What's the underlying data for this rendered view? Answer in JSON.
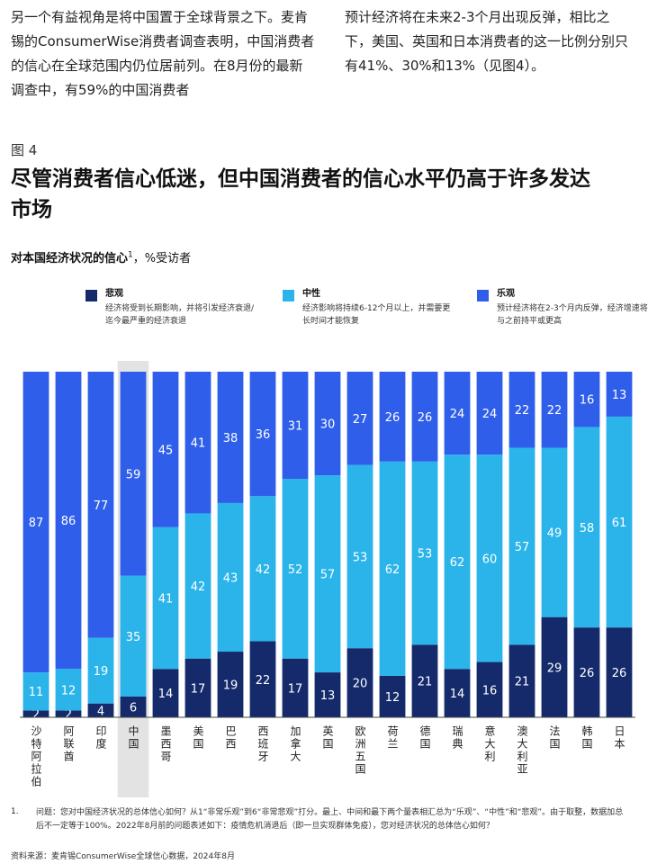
{
  "document": {
    "paragraph_left": "另一个有益视角是将中国置于全球背景之下。麦肯锡的ConsumerWise消费者调查表明，中国消费者的信心在全球范围内仍位居前列。在8月份的最新调查中，有59%的中国消费者",
    "paragraph_right": "预计经济将在未来2-3个月出现反弹，相比之下，美国、英国和日本消费者的这一比例分别只有41%、30%和13%（见图4）。"
  },
  "chart_data": {
    "type": "stacked_bar",
    "figure_label": "图 4",
    "title": "尽管消费者信心低迷，但中国消费者的信心水平仍高于许多发达市场",
    "subtitle": {
      "main": "对本国经济状况的信心",
      "note": "1",
      "unit": "，%受访者"
    },
    "categories": [
      "沙特阿拉伯",
      "阿联酋",
      "印度",
      "中国",
      "墨西哥",
      "美国",
      "巴西",
      "西班牙",
      "加拿大",
      "英国",
      "欧洲五国",
      "荷兰",
      "德国",
      "瑞典",
      "意大利",
      "澳大利亚",
      "法国",
      "韩国",
      "日本"
    ],
    "highlight_index": 3,
    "highlight_color": "#e3e3e3",
    "ylim": [
      0,
      100
    ],
    "series": [
      {
        "name": "悲观",
        "color": "#142a6b",
        "description": "经济将受到长期影响，并将引发经济衰退/迄今最严重的经济衰退",
        "values": [
          2,
          2,
          4,
          6,
          14,
          17,
          19,
          22,
          17,
          13,
          20,
          12,
          21,
          14,
          16,
          21,
          29,
          26,
          26
        ]
      },
      {
        "name": "中性",
        "color": "#2bb4ea",
        "description": "经济影响将持续6-12个月以上，并需要更长时间才能恢复",
        "values": [
          11,
          12,
          19,
          35,
          41,
          42,
          43,
          42,
          52,
          57,
          53,
          62,
          53,
          62,
          60,
          57,
          49,
          58,
          61
        ]
      },
      {
        "name": "乐观",
        "color": "#2f5fea",
        "description": "预计经济将在2-3个月内反弹，经济增速将与之前持平或更高",
        "values": [
          87,
          86,
          77,
          59,
          45,
          41,
          38,
          36,
          31,
          30,
          27,
          26,
          26,
          24,
          24,
          22,
          22,
          16,
          13
        ]
      }
    ],
    "footnote": {
      "number": "1.",
      "text": "问题：您对中国经济状况的总体信心如何？从1“非常乐观”到6“非常悲观”打分。最上、中间和最下两个量表相汇总为“乐观”、“中性”和“悲观”。由于取整，数据加总后不一定等于100%。2022年8月前的问题表述如下：疫情危机消退后（即一旦实现群体免疫），您对经济状况的总体信心如何？"
    },
    "source": "资料来源：麦肯锡ConsumerWise全球信心数据，2024年8月"
  }
}
